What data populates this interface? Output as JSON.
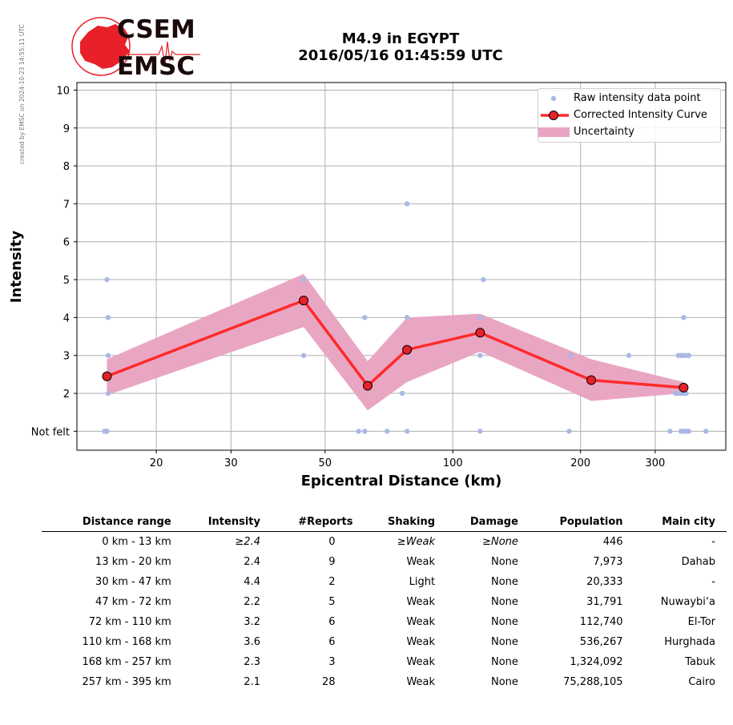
{
  "credit": "created by EMSC on 2024-10-23 14:55:11 UTC",
  "logo": {
    "top_text": "CSEM",
    "bottom_text": "EMSC"
  },
  "title_line1": "M4.9 in EGYPT",
  "title_line2": "2016/05/16 01:45:59 UTC",
  "colors": {
    "curve": "#ff2a2a",
    "band": "#e9a6c3",
    "raw": "#aab8e6",
    "marker": "#e8202a"
  },
  "chart_data": {
    "type": "line",
    "xlabel": "Epicentral Distance (km)",
    "ylabel": "Intensity",
    "xscale": "log",
    "xlim": [
      13,
      440
    ],
    "ylim": [
      0.5,
      10.2
    ],
    "xticks": [
      20,
      30,
      50,
      100,
      200,
      300
    ],
    "yticks": [
      1,
      2,
      3,
      4,
      5,
      6,
      7,
      8,
      9,
      10
    ],
    "ytick_labels": [
      "Not felt",
      "2",
      "3",
      "4",
      "5",
      "6",
      "7",
      "8",
      "9",
      "10"
    ],
    "grid": true,
    "legend_position": "top-right",
    "legend": [
      "Raw intensity data point",
      "Corrected Intensity Curve",
      "Uncertainty"
    ],
    "series": [
      {
        "name": "Corrected Intensity Curve",
        "x": [
          15.3,
          44.5,
          63,
          78,
          116,
          212,
          350
        ],
        "y": [
          2.45,
          4.45,
          2.2,
          3.15,
          3.6,
          2.35,
          2.15
        ]
      },
      {
        "name": "Uncertainty",
        "x": [
          15.3,
          44.5,
          63,
          78,
          116,
          212,
          350
        ],
        "lower": [
          1.95,
          3.75,
          1.55,
          2.3,
          3.1,
          1.8,
          2.0
        ],
        "upper": [
          2.9,
          5.15,
          2.85,
          4.0,
          4.1,
          2.9,
          2.3
        ]
      },
      {
        "name": "Raw intensity data point",
        "x": [
          15.1,
          15.2,
          15.3,
          15.4,
          15.4,
          15.4,
          15.3,
          15.3,
          44.5,
          44.5,
          60,
          62,
          62,
          70,
          76,
          78,
          78,
          78,
          116,
          116,
          116,
          118,
          188,
          190,
          260,
          325,
          335,
          340,
          342,
          345,
          346,
          348,
          350,
          352,
          355,
          358,
          360,
          345,
          350,
          355,
          338,
          345,
          350,
          352,
          355,
          360,
          395
        ],
        "y": [
          1,
          1,
          1,
          2,
          3,
          4,
          5,
          1,
          3,
          5,
          1,
          1,
          4,
          1,
          2,
          1,
          4,
          7,
          1,
          3,
          4,
          5,
          1,
          3,
          3,
          1,
          2,
          3,
          2,
          3,
          2,
          3,
          2,
          3,
          2,
          3,
          3,
          1,
          1,
          1,
          2,
          2,
          4,
          2,
          1,
          1,
          1
        ]
      }
    ]
  },
  "table": {
    "headers": [
      "Distance range",
      "Intensity",
      "#Reports",
      "Shaking",
      "Damage",
      "Population",
      "Main city"
    ],
    "rows": [
      [
        "0 km -   13 km",
        "≥2.4",
        "0",
        "≥Weak",
        "≥None",
        "446",
        "-"
      ],
      [
        "13 km -   20 km",
        "2.4",
        "9",
        "Weak",
        "None",
        "7,973",
        "Dahab"
      ],
      [
        "30 km -   47 km",
        "4.4",
        "2",
        "Light",
        "None",
        "20,333",
        "-"
      ],
      [
        "47 km -   72 km",
        "2.2",
        "5",
        "Weak",
        "None",
        "31,791",
        "Nuwaybi‘a"
      ],
      [
        "72 km -  110 km",
        "3.2",
        "6",
        "Weak",
        "None",
        "112,740",
        "El-Tor"
      ],
      [
        "110 km -  168 km",
        "3.6",
        "6",
        "Weak",
        "None",
        "536,267",
        "Hurghada"
      ],
      [
        "168 km -  257 km",
        "2.3",
        "3",
        "Weak",
        "None",
        "1,324,092",
        "Tabuk"
      ],
      [
        "257 km -  395 km",
        "2.1",
        "28",
        "Weak",
        "None",
        "75,288,105",
        "Cairo"
      ]
    ]
  }
}
